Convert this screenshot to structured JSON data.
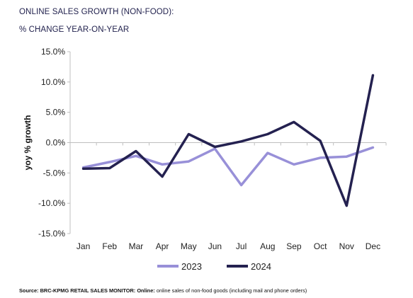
{
  "header": {
    "title_line1": "ONLINE SALES GROWTH (NON-FOOD):",
    "title_line2": "% CHANGE YEAR-ON-YEAR"
  },
  "source": {
    "label": "Source: BRC-KPMG RETAIL SALES MONITOR:",
    "online_label": "Online:",
    "text": "online sales of non-food goods (including mail and phone orders)"
  },
  "chart_data": {
    "type": "line",
    "title": "ONLINE SALES GROWTH (NON-FOOD): % CHANGE YEAR-ON-YEAR",
    "ylabel": "yoy % growth",
    "xlabel": "",
    "categories": [
      "Jan",
      "Feb",
      "Mar",
      "Apr",
      "May",
      "Jun",
      "Jul",
      "Aug",
      "Sep",
      "Oct",
      "Nov",
      "Dec"
    ],
    "ylim": [
      -15,
      15
    ],
    "yticks": [
      15,
      10,
      5,
      0,
      -5,
      -10,
      -15
    ],
    "ytick_labels": [
      "15.0%",
      "10.0%",
      "5.0%",
      "0.0%",
      "-5.0%",
      "-10.0%",
      "-15.0%"
    ],
    "grid": false,
    "legend": "bottom",
    "series": [
      {
        "name": "2023",
        "color": "#9890d8",
        "values": [
          -4.1,
          -3.2,
          -2.2,
          -3.6,
          -3.1,
          -1.0,
          -7.0,
          -1.7,
          -3.6,
          -2.5,
          -2.3,
          -0.8
        ]
      },
      {
        "name": "2024",
        "color": "#242150",
        "values": [
          -4.3,
          -4.2,
          -1.4,
          -5.6,
          1.4,
          -0.7,
          0.2,
          1.4,
          3.4,
          0.3,
          -10.4,
          11.1
        ]
      }
    ]
  }
}
